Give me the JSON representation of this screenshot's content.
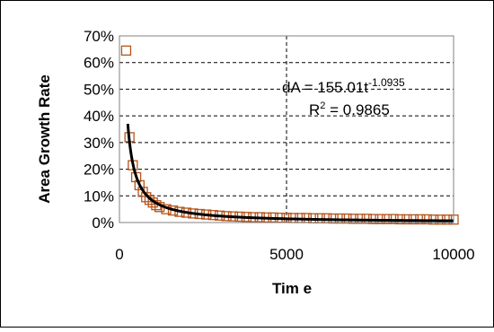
{
  "chart_data": {
    "type": "scatter",
    "xlabel": "Tim e",
    "ylabel": "Area Growth Rate",
    "xlim": [
      0,
      10000
    ],
    "ylim": [
      0,
      0.7
    ],
    "x_ticks": [
      "0",
      "5000",
      "10000"
    ],
    "y_ticks": [
      "0%",
      "10%",
      "20%",
      "30%",
      "40%",
      "50%",
      "60%",
      "70%"
    ],
    "grid": {
      "horizontal": "dashed",
      "vertical": "dashed at 5000"
    },
    "series": [
      {
        "marker": "open-square",
        "x": [
          200,
          300,
          400,
          500,
          600,
          700,
          800,
          900,
          1000,
          1100,
          1200,
          1400,
          1600,
          1800,
          2000,
          2200,
          2400,
          2600,
          2800,
          3000,
          3200,
          3400,
          3600,
          3800,
          4000,
          4200,
          4400,
          4600,
          4800,
          5000,
          5200,
          5400,
          5600,
          5800,
          6000,
          6200,
          6400,
          6600,
          6800,
          7000,
          7200,
          7400,
          7600,
          7800,
          8000,
          8200,
          8400,
          8600,
          8800,
          9000,
          9200,
          9400,
          9600,
          9800,
          10000
        ],
        "y": [
          0.645,
          0.32,
          0.215,
          0.17,
          0.14,
          0.115,
          0.095,
          0.085,
          0.075,
          0.065,
          0.058,
          0.05,
          0.045,
          0.04,
          0.037,
          0.034,
          0.032,
          0.03,
          0.028,
          0.026,
          0.024,
          0.023,
          0.022,
          0.021,
          0.02,
          0.02,
          0.019,
          0.019,
          0.018,
          0.018,
          0.017,
          0.017,
          0.017,
          0.016,
          0.016,
          0.016,
          0.015,
          0.015,
          0.015,
          0.014,
          0.014,
          0.014,
          0.013,
          0.013,
          0.013,
          0.013,
          0.012,
          0.012,
          0.012,
          0.012,
          0.012,
          0.011,
          0.011,
          0.011,
          0.011
        ],
        "color": "#b5541c"
      },
      {
        "marker": "line",
        "equation": "y = 155.01*x^-1.0935",
        "x_range": [
          250,
          10000
        ],
        "color": "#000000"
      }
    ],
    "annotations": {
      "equation_base": "dA = 155.01t",
      "equation_exp": "-1.0935",
      "r2_base": "R",
      "r2_sup": "2",
      "r2_value": " = 0.9865"
    }
  }
}
